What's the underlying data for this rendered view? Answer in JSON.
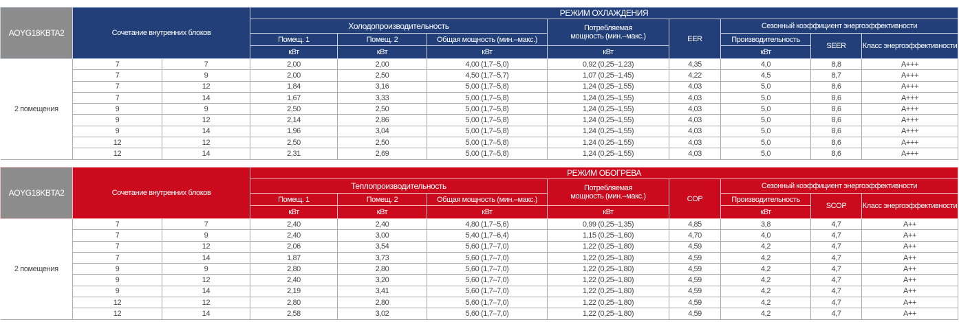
{
  "tables": [
    {
      "mode": "РЕЖИМ ОХЛАЖДЕНИЯ",
      "model": "AOYG18KBTA2",
      "combo_header": "Сочетание внутренних блоков",
      "capacity_header": "Холодопроизводительность",
      "room1": "Помещ. 1",
      "room2": "Помещ. 2",
      "total": "Общая мощность (мин.–макс.)",
      "power": "Потребляемая мощность (мин.–макс.)",
      "ratio": "EER",
      "seasonal": "Сезонный коэффициент энергоэффективности",
      "productivity": "Производительность",
      "seasonal_ratio": "SEER",
      "class": "Класс энергоэффективности",
      "unit": "кВт",
      "rooms_label": "2 помещения",
      "rows": [
        [
          "7",
          "7",
          "2,00",
          "2,00",
          "4,00 (1,7–5,0)",
          "0,92 (0,25–1,23)",
          "4,35",
          "4,0",
          "8,8",
          "A+++"
        ],
        [
          "7",
          "9",
          "2,00",
          "2,50",
          "4,50 (1,7–5,7)",
          "1,07 (0,25–1,45)",
          "4,22",
          "4,5",
          "8,7",
          "A+++"
        ],
        [
          "7",
          "12",
          "1,84",
          "3,16",
          "5,00 (1,7–5,8)",
          "1,24 (0,25–1,55)",
          "4,03",
          "5,0",
          "8,6",
          "A+++"
        ],
        [
          "7",
          "14",
          "1,67",
          "3,33",
          "5,00 (1,7–5,8)",
          "1,24 (0,25–1,55)",
          "4,03",
          "5,0",
          "8,6",
          "A+++"
        ],
        [
          "9",
          "9",
          "2,50",
          "2,50",
          "5,00 (1,7–5,8)",
          "1,24 (0,25–1,55)",
          "4,03",
          "5,0",
          "8,6",
          "A+++"
        ],
        [
          "9",
          "12",
          "2,14",
          "2,86",
          "5,00 (1,7–5,8)",
          "1,24 (0,25–1,55)",
          "4,03",
          "5,0",
          "8,6",
          "A+++"
        ],
        [
          "9",
          "14",
          "1,96",
          "3,04",
          "5,00 (1,7–5,8)",
          "1,24 (0,25–1,55)",
          "4,03",
          "5,0",
          "8,6",
          "A+++"
        ],
        [
          "12",
          "12",
          "2,50",
          "2,50",
          "5,00 (1,7–5,8)",
          "1,24 (0,25–1,55)",
          "4,03",
          "5,0",
          "8,6",
          "A+++"
        ],
        [
          "12",
          "14",
          "2,31",
          "2,69",
          "5,00 (1,7–5,8)",
          "1,24 (0,25–1,55)",
          "4,03",
          "5,0",
          "8,6",
          "A+++"
        ]
      ]
    },
    {
      "mode": "РЕЖИМ ОБОГРЕВА",
      "model": "AOYG18KBTA2",
      "combo_header": "Сочетание внутренних блоков",
      "capacity_header": "Теплопроизводительность",
      "room1": "Помещ. 1",
      "room2": "Помещ. 2",
      "total": "Общая мощность (мин.–макс.)",
      "power": "Потребляемая мощность (мин.–макс.)",
      "ratio": "COP",
      "seasonal": "Сезонный коэффициент энергоэффективности",
      "productivity": "Производительность",
      "seasonal_ratio": "SCOP",
      "class": "Класс энергоэффективности",
      "unit": "кВт",
      "rooms_label": "2 помещения",
      "rows": [
        [
          "7",
          "7",
          "2,40",
          "2,40",
          "4,80 (1,7–5,6)",
          "0,99 (0,25–1,35)",
          "4,85",
          "3,8",
          "4,7",
          "A++"
        ],
        [
          "7",
          "9",
          "2,40",
          "3,00",
          "5,40 (1,7–6,4)",
          "1,15 (0,25–1,60)",
          "4,70",
          "4,0",
          "4,7",
          "A++"
        ],
        [
          "7",
          "12",
          "2,06",
          "3,54",
          "5,60 (1,7–7,0)",
          "1,22 (0,25–1,80)",
          "4,59",
          "4,2",
          "4,7",
          "A++"
        ],
        [
          "7",
          "14",
          "1,87",
          "3,73",
          "5,60 (1,7–7,0)",
          "1,22 (0,25–1,80)",
          "4,59",
          "4,2",
          "4,7",
          "A++"
        ],
        [
          "9",
          "9",
          "2,80",
          "2,80",
          "5,60 (1,7–7,0)",
          "1,22 (0,25–1,80)",
          "4,59",
          "4,2",
          "4,7",
          "A++"
        ],
        [
          "9",
          "12",
          "2,40",
          "3,20",
          "5,60 (1,7–7,0)",
          "1,22 (0,25–1,80)",
          "4,59",
          "4,2",
          "4,7",
          "A++"
        ],
        [
          "9",
          "14",
          "2,19",
          "3,41",
          "5,60 (1,7–7,0)",
          "1,22 (0,25–1,80)",
          "4,59",
          "4,2",
          "4,7",
          "A++"
        ],
        [
          "12",
          "12",
          "2,80",
          "2,80",
          "5,60 (1,7–7,0)",
          "1,22 (0,25–1,80)",
          "4,59",
          "4,2",
          "4,7",
          "A++"
        ],
        [
          "12",
          "14",
          "2,58",
          "3,02",
          "5,60 (1,7–7,0)",
          "1,22 (0,25–1,80)",
          "4,59",
          "4,2",
          "4,7",
          "A++"
        ]
      ]
    }
  ]
}
